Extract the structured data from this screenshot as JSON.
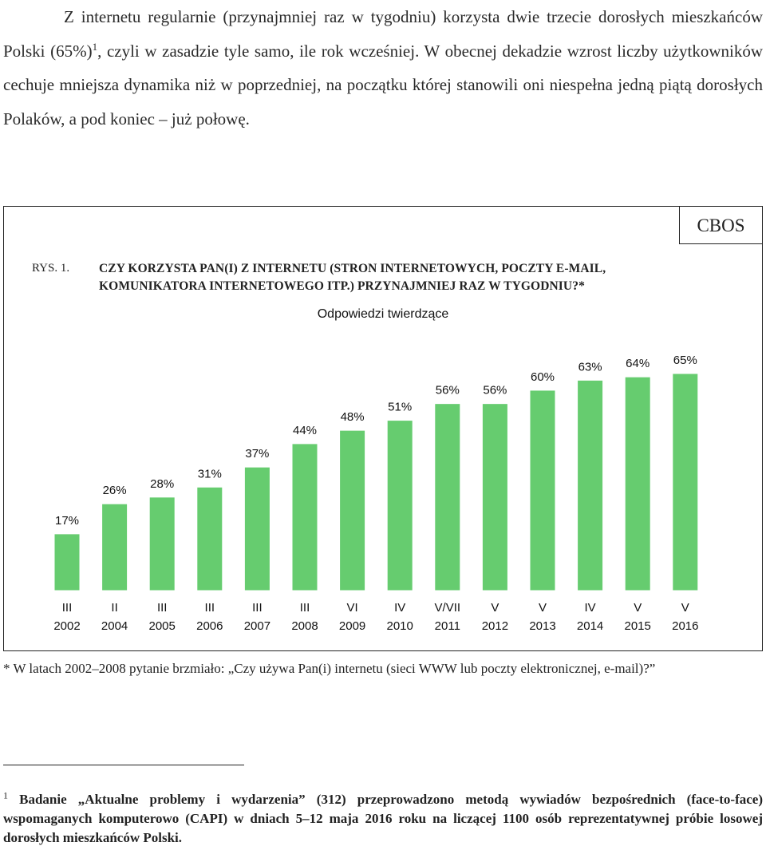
{
  "paragraph": {
    "text_before": "Z internetu regularnie (przynajmniej raz w tygodniu) korzysta dwie trzecie dorosłych mieszkańców Polski (65%)",
    "footnote_ref": "1",
    "text_after": ", czyli w zasadzie tyle samo, ile rok wcześniej. W obecnej dekadzie wzrost liczby użytkowników cechuje mniejsza dynamika niż w poprzedniej, na początku której stanowili oni niespełna jedną piątą dorosłych Polaków, a pod koniec – już połowę."
  },
  "figure": {
    "source_label": "CBOS",
    "number": "RYS. 1.",
    "title_line1": "CZY KORZYSTA PAN(I) Z INTERNETU (STRON INTERNETOWYCH, POCZTY E-MAIL,",
    "title_line2": "KOMUNIKATORA INTERNETOWEGO ITP.) PRZYNAJMNIEJ RAZ W TYGODNIU?*",
    "subtitle": "Odpowiedzi twierdzące"
  },
  "chart_data": {
    "type": "bar",
    "title": "Odpowiedzi twierdzące",
    "categories": [
      "III 2002",
      "II 2004",
      "III 2005",
      "III 2006",
      "III 2007",
      "III 2008",
      "VI 2009",
      "IV 2010",
      "V/VII 2011",
      "V 2012",
      "V 2013",
      "IV 2014",
      "V 2015",
      "V 2016"
    ],
    "category_lines": [
      [
        "III",
        "2002"
      ],
      [
        "II",
        "2004"
      ],
      [
        "III",
        "2005"
      ],
      [
        "III",
        "2006"
      ],
      [
        "III",
        "2007"
      ],
      [
        "III",
        "2008"
      ],
      [
        "VI",
        "2009"
      ],
      [
        "IV",
        "2010"
      ],
      [
        "V/VII",
        "2011"
      ],
      [
        "V",
        "2012"
      ],
      [
        "V",
        "2013"
      ],
      [
        "IV",
        "2014"
      ],
      [
        "V",
        "2015"
      ],
      [
        "V",
        "2016"
      ]
    ],
    "values": [
      17,
      26,
      28,
      31,
      37,
      44,
      48,
      51,
      56,
      56,
      60,
      63,
      64,
      65
    ],
    "labels": [
      "17%",
      "26%",
      "28%",
      "31%",
      "37%",
      "44%",
      "48%",
      "51%",
      "56%",
      "56%",
      "60%",
      "63%",
      "64%",
      "65%"
    ],
    "unit": "%",
    "ylim": [
      0,
      65
    ],
    "bar_color": "#66cc6f",
    "grid": false,
    "legend": "none"
  },
  "note": "* W latach 2002–2008 pytanie brzmiało: „Czy używa Pan(i) internetu (sieci WWW lub poczty elektronicznej, e-mail)?”",
  "footnote": {
    "number": "1",
    "text": "Badanie „Aktualne problemy i wydarzenia” (312) przeprowadzono metodą wywiadów bezpośrednich (face-to-face) wspomaganych komputerowo (CAPI) w dniach 5–12 maja 2016 roku na liczącej 1100 osób reprezentatywnej próbie losowej dorosłych mieszkańców Polski."
  }
}
